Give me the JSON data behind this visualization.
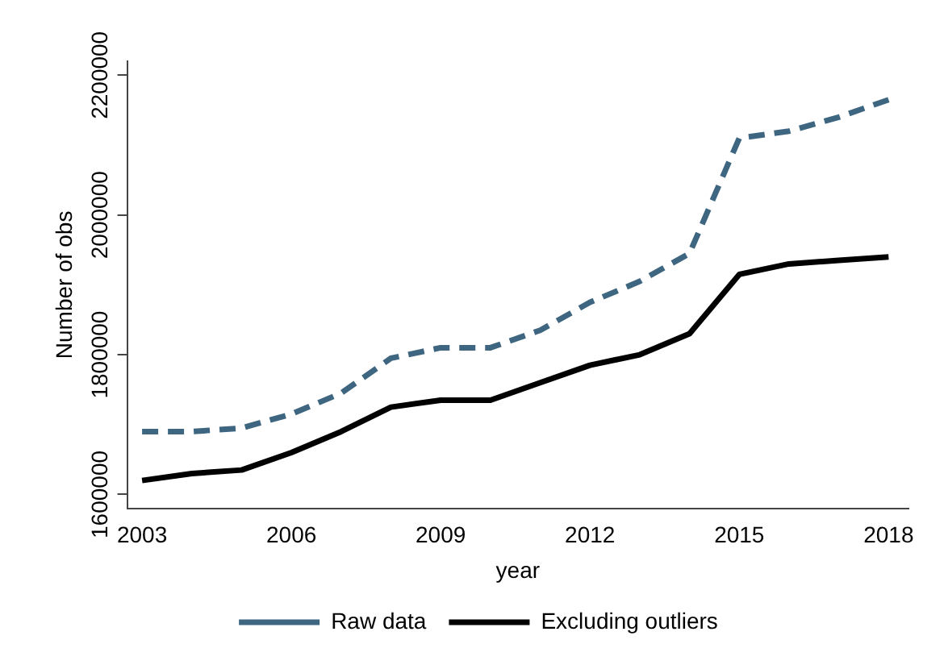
{
  "chart_data": {
    "type": "line",
    "xlabel": "year",
    "ylabel": "Number of obs",
    "x": [
      2003,
      2004,
      2005,
      2006,
      2007,
      2008,
      2009,
      2010,
      2011,
      2012,
      2013,
      2014,
      2015,
      2016,
      2017,
      2018
    ],
    "series": [
      {
        "name": "Raw data",
        "color": "#3e6680",
        "line_style": "dashed",
        "values": [
          1690000,
          1690000,
          1695000,
          1715000,
          1745000,
          1795000,
          1810000,
          1810000,
          1835000,
          1875000,
          1905000,
          1945000,
          2110000,
          2120000,
          2140000,
          2165000
        ]
      },
      {
        "name": "Excluding outliers",
        "color": "#000000",
        "line_style": "solid",
        "values": [
          1620000,
          1630000,
          1635000,
          1660000,
          1690000,
          1725000,
          1735000,
          1735000,
          1760000,
          1785000,
          1800000,
          1830000,
          1915000,
          1930000,
          1935000,
          1940000
        ]
      }
    ],
    "xlim": [
      2002.7,
      2018.4
    ],
    "xticks": [
      2003,
      2006,
      2009,
      2012,
      2015,
      2018
    ],
    "ylim": [
      1580000,
      2220000
    ],
    "yticks": [
      1600000,
      1800000,
      2000000,
      2200000
    ],
    "grid": false,
    "legend": "bottom",
    "marker": "none"
  }
}
